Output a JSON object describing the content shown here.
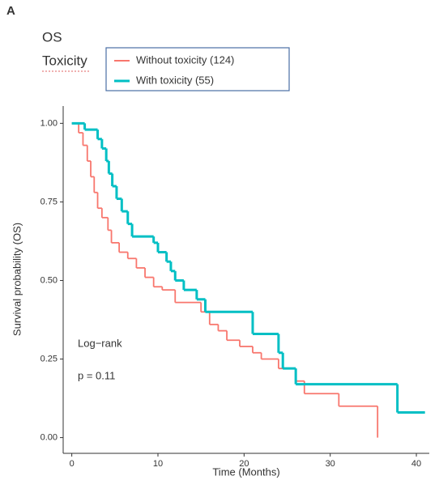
{
  "panel_label": "A",
  "chart_data": {
    "type": "step",
    "title": "OS",
    "legend_title": "Toxicity",
    "x_label": "Time (Months)",
    "y_label": "Survival probability (OS)",
    "annotations": [
      "Log−rank",
      "p = 0.11"
    ],
    "xlim": [
      -1,
      41.5
    ],
    "ylim": [
      -0.05,
      1.055
    ],
    "xticks": [
      0,
      10,
      20,
      30,
      40
    ],
    "yticks": [
      {
        "value": 0,
        "label": "0.00"
      },
      {
        "value": 0.25,
        "label": "0.25"
      },
      {
        "value": 0.5,
        "label": "0.50"
      },
      {
        "value": 0.75,
        "label": "0.75"
      },
      {
        "value": 1,
        "label": "1.00"
      }
    ],
    "series": [
      {
        "name": "Without toxicity (124)",
        "color": "#f8766d",
        "x": [
          0,
          0.8,
          1.3,
          1.8,
          2.2,
          2.6,
          3,
          3.5,
          4.2,
          4.6,
          5.5,
          6.5,
          7.5,
          8.5,
          9.5,
          10.5,
          12,
          15,
          16,
          17,
          18,
          19.5,
          21,
          22,
          24,
          26,
          27,
          31,
          35.5
        ],
        "values": [
          1.0,
          0.97,
          0.93,
          0.88,
          0.83,
          0.78,
          0.73,
          0.7,
          0.66,
          0.62,
          0.59,
          0.57,
          0.54,
          0.51,
          0.48,
          0.47,
          0.43,
          0.4,
          0.36,
          0.34,
          0.31,
          0.29,
          0.27,
          0.25,
          0.22,
          0.18,
          0.14,
          0.1,
          0.0
        ]
      },
      {
        "name": "With toxicity (55)",
        "color": "#00bfc4",
        "x": [
          0,
          1.5,
          3,
          3.5,
          4,
          4.3,
          4.7,
          5.2,
          5.8,
          6.5,
          7,
          9.5,
          10,
          11,
          11.5,
          12,
          13,
          14.5,
          15.5,
          21,
          24,
          24.5,
          26,
          37.8,
          41
        ],
        "values": [
          1.0,
          0.98,
          0.95,
          0.92,
          0.88,
          0.84,
          0.8,
          0.76,
          0.72,
          0.68,
          0.64,
          0.62,
          0.59,
          0.56,
          0.53,
          0.5,
          0.47,
          0.44,
          0.4,
          0.33,
          0.27,
          0.22,
          0.17,
          0.08,
          0.08
        ]
      }
    ]
  }
}
